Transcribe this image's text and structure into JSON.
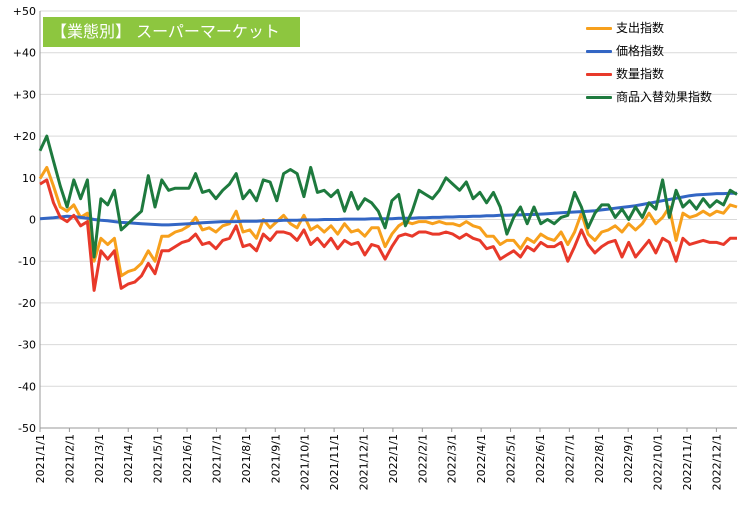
{
  "chart_data": {
    "type": "line",
    "title": "【業態別】 スーパーマーケット",
    "colors": {
      "title_bg": "#8dc63f",
      "grid": "#d9d9d9"
    },
    "ylim": [
      -50,
      50
    ],
    "yticks": [
      50,
      40,
      30,
      20,
      10,
      0,
      -10,
      -20,
      -30,
      -40,
      -50
    ],
    "ytick_labels": [
      "+50",
      "+40",
      "+30",
      "+20",
      "10",
      "0",
      "-10",
      "-20",
      "-30",
      "-40",
      "-50"
    ],
    "grid": true,
    "legend_position": "top-right",
    "x_tick_labels": [
      "2021/1/1",
      "2021/2/1",
      "2021/3/1",
      "2021/4/1",
      "2021/5/1",
      "2021/6/1",
      "2021/7/1",
      "2021/8/1",
      "2021/9/1",
      "2021/10/1",
      "2021/11/1",
      "2021/12/1",
      "2022/1/1",
      "2022/2/1",
      "2022/3/1",
      "2022/4/1",
      "2022/5/1",
      "2022/6/1",
      "2022/7/1",
      "2022/8/1",
      "2022/9/1",
      "2022/10/1",
      "2022/11/1",
      "2022/12/1"
    ],
    "x_points": 104,
    "series": [
      {
        "name": "支出指数",
        "color": "#f7a01c",
        "values": [
          9.8,
          12.5,
          8.0,
          3.0,
          2.0,
          3.5,
          0.5,
          1.5,
          -10.0,
          -4.5,
          -6.0,
          -4.5,
          -13.5,
          -12.5,
          -12.0,
          -10.5,
          -7.5,
          -10.0,
          -4.0,
          -4.0,
          -3.0,
          -2.5,
          -1.5,
          0.5,
          -2.5,
          -2.0,
          -3.0,
          -1.5,
          -1.0,
          2.0,
          -3.0,
          -2.5,
          -4.5,
          0.0,
          -2.0,
          -0.5,
          1.0,
          -1.0,
          -2.0,
          1.0,
          -2.5,
          -1.5,
          -3.0,
          -1.5,
          -3.5,
          -1.0,
          -3.0,
          -2.5,
          -4.0,
          -2.0,
          -2.0,
          -6.5,
          -3.5,
          -1.5,
          -0.5,
          -1.0,
          -0.5,
          -0.5,
          -1.0,
          -0.5,
          -1.0,
          -1.0,
          -1.5,
          -0.5,
          -1.5,
          -2.0,
          -4.0,
          -4.0,
          -6.0,
          -5.0,
          -5.0,
          -7.0,
          -4.5,
          -5.5,
          -3.5,
          -4.5,
          -5.0,
          -3.0,
          -6.0,
          -3.0,
          1.5,
          -3.5,
          -5.0,
          -3.0,
          -2.5,
          -1.5,
          -3.0,
          -1.0,
          -2.5,
          -1.0,
          1.5,
          -1.0,
          0.5,
          3.0,
          -5.0,
          1.5,
          0.5,
          1.0,
          2.0,
          1.0,
          2.0,
          1.5,
          3.5,
          3.0
        ]
      },
      {
        "name": "価格指数",
        "color": "#3366c4",
        "values": [
          0.2,
          0.3,
          0.4,
          0.6,
          0.8,
          0.7,
          0.5,
          0.3,
          0.0,
          -0.2,
          -0.3,
          -0.5,
          -0.7,
          -0.8,
          -0.9,
          -1.0,
          -1.1,
          -1.2,
          -1.3,
          -1.3,
          -1.2,
          -1.1,
          -1.0,
          -0.9,
          -0.8,
          -0.7,
          -0.6,
          -0.5,
          -0.5,
          -0.5,
          -0.4,
          -0.4,
          -0.4,
          -0.3,
          -0.3,
          -0.3,
          -0.2,
          -0.2,
          -0.2,
          -0.1,
          -0.1,
          -0.1,
          0.0,
          0.0,
          0.0,
          0.1,
          0.1,
          0.1,
          0.1,
          0.2,
          0.2,
          0.2,
          0.2,
          0.3,
          0.3,
          0.3,
          0.4,
          0.4,
          0.5,
          0.5,
          0.6,
          0.6,
          0.7,
          0.7,
          0.8,
          0.8,
          0.9,
          0.9,
          1.0,
          1.0,
          1.1,
          1.1,
          1.2,
          1.2,
          1.3,
          1.4,
          1.5,
          1.6,
          1.7,
          1.8,
          1.9,
          2.0,
          2.1,
          2.3,
          2.5,
          2.7,
          2.9,
          3.1,
          3.3,
          3.6,
          3.9,
          4.2,
          4.5,
          4.8,
          5.1,
          5.4,
          5.7,
          5.9,
          6.0,
          6.1,
          6.2,
          6.2,
          6.3,
          6.3
        ]
      },
      {
        "name": "数量指数",
        "color": "#e8392a",
        "values": [
          8.5,
          9.5,
          4.0,
          0.5,
          -0.5,
          1.0,
          -1.5,
          -0.5,
          -17.0,
          -7.5,
          -9.5,
          -7.5,
          -16.5,
          -15.5,
          -15.0,
          -13.5,
          -10.5,
          -13.0,
          -7.5,
          -7.5,
          -6.5,
          -5.5,
          -5.0,
          -3.5,
          -6.0,
          -5.5,
          -7.0,
          -5.0,
          -4.5,
          -1.5,
          -6.5,
          -6.0,
          -7.5,
          -3.5,
          -5.0,
          -3.0,
          -3.0,
          -3.5,
          -5.0,
          -2.5,
          -6.0,
          -4.5,
          -6.5,
          -4.5,
          -7.0,
          -5.0,
          -6.0,
          -5.5,
          -8.5,
          -6.0,
          -6.5,
          -9.5,
          -6.5,
          -4.0,
          -3.5,
          -4.0,
          -3.0,
          -3.0,
          -3.5,
          -3.5,
          -3.0,
          -3.5,
          -4.5,
          -3.5,
          -4.5,
          -5.0,
          -7.0,
          -6.5,
          -9.5,
          -8.5,
          -7.5,
          -9.0,
          -6.5,
          -7.5,
          -5.5,
          -6.5,
          -6.5,
          -5.5,
          -10.0,
          -6.5,
          -2.5,
          -6.0,
          -8.0,
          -6.5,
          -5.5,
          -5.0,
          -9.0,
          -5.5,
          -9.0,
          -7.0,
          -5.0,
          -8.0,
          -4.5,
          -5.5,
          -10.0,
          -4.5,
          -6.0,
          -5.5,
          -5.0,
          -5.5,
          -5.5,
          -6.0,
          -4.5,
          -4.5
        ]
      },
      {
        "name": "商品入替効果指数",
        "color": "#1e7a3e",
        "values": [
          16.5,
          20.0,
          14.0,
          8.0,
          3.0,
          9.5,
          5.0,
          9.5,
          -9.0,
          5.0,
          3.5,
          7.0,
          -2.5,
          -1.0,
          0.5,
          2.0,
          10.5,
          3.0,
          9.5,
          7.0,
          7.5,
          7.5,
          7.5,
          11.0,
          6.5,
          7.0,
          5.0,
          7.0,
          8.5,
          11.0,
          5.0,
          7.0,
          4.5,
          9.5,
          9.0,
          4.5,
          11.0,
          12.0,
          11.0,
          5.5,
          12.5,
          6.5,
          7.0,
          5.5,
          7.0,
          2.0,
          6.5,
          2.5,
          5.0,
          4.0,
          2.0,
          -2.0,
          4.5,
          6.0,
          -1.5,
          2.0,
          7.0,
          6.0,
          5.0,
          7.0,
          10.0,
          8.5,
          7.0,
          9.0,
          5.0,
          6.5,
          4.0,
          6.5,
          3.0,
          -3.5,
          0.5,
          3.0,
          -1.0,
          3.0,
          -1.0,
          0.0,
          -1.0,
          0.5,
          1.0,
          6.5,
          3.0,
          -2.0,
          1.5,
          3.5,
          3.5,
          0.5,
          2.5,
          0.0,
          3.0,
          0.5,
          4.0,
          2.5,
          9.5,
          0.5,
          7.0,
          3.0,
          4.5,
          2.5,
          5.0,
          3.0,
          4.5,
          3.5,
          7.0,
          6.0
        ]
      }
    ]
  }
}
